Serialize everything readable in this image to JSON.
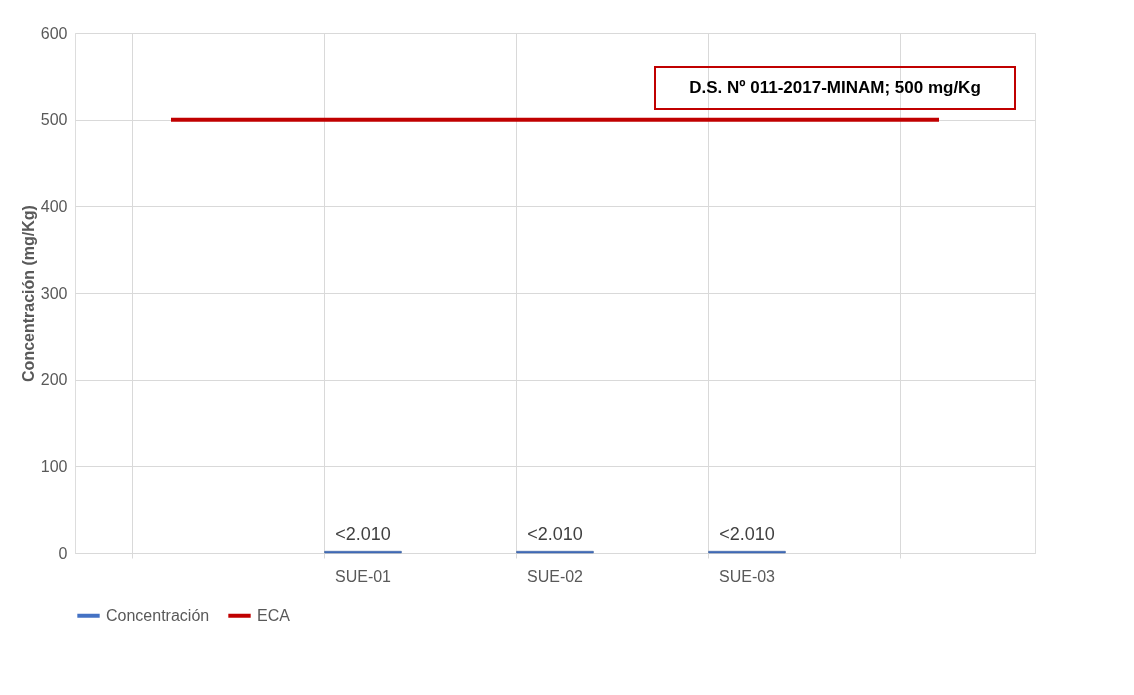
{
  "chart_data": {
    "type": "bar",
    "ylabel": "Concentración (mg/Kg)",
    "categories": [
      null,
      "SUE-01",
      "SUE-02",
      "SUE-03",
      null
    ],
    "series": [
      {
        "name": "Concentración",
        "color": "#4472c4",
        "values": [
          null,
          2.01,
          2.01,
          2.01,
          null
        ],
        "value_labels": [
          null,
          "<2.010",
          "<2.010",
          "<2.010",
          null
        ]
      },
      {
        "name": "ECA",
        "type": "line",
        "color": "#c00000",
        "values": [
          500,
          500,
          500,
          500,
          500
        ]
      }
    ],
    "ylim": [
      0,
      600
    ],
    "yticks": [
      0,
      100,
      200,
      300,
      400,
      500,
      600
    ],
    "grid": true,
    "legend": "bottom",
    "marker": "none",
    "annotations": [
      "D.S. Nº 011-2017-MINAM; 500 mg/Kg"
    ]
  }
}
